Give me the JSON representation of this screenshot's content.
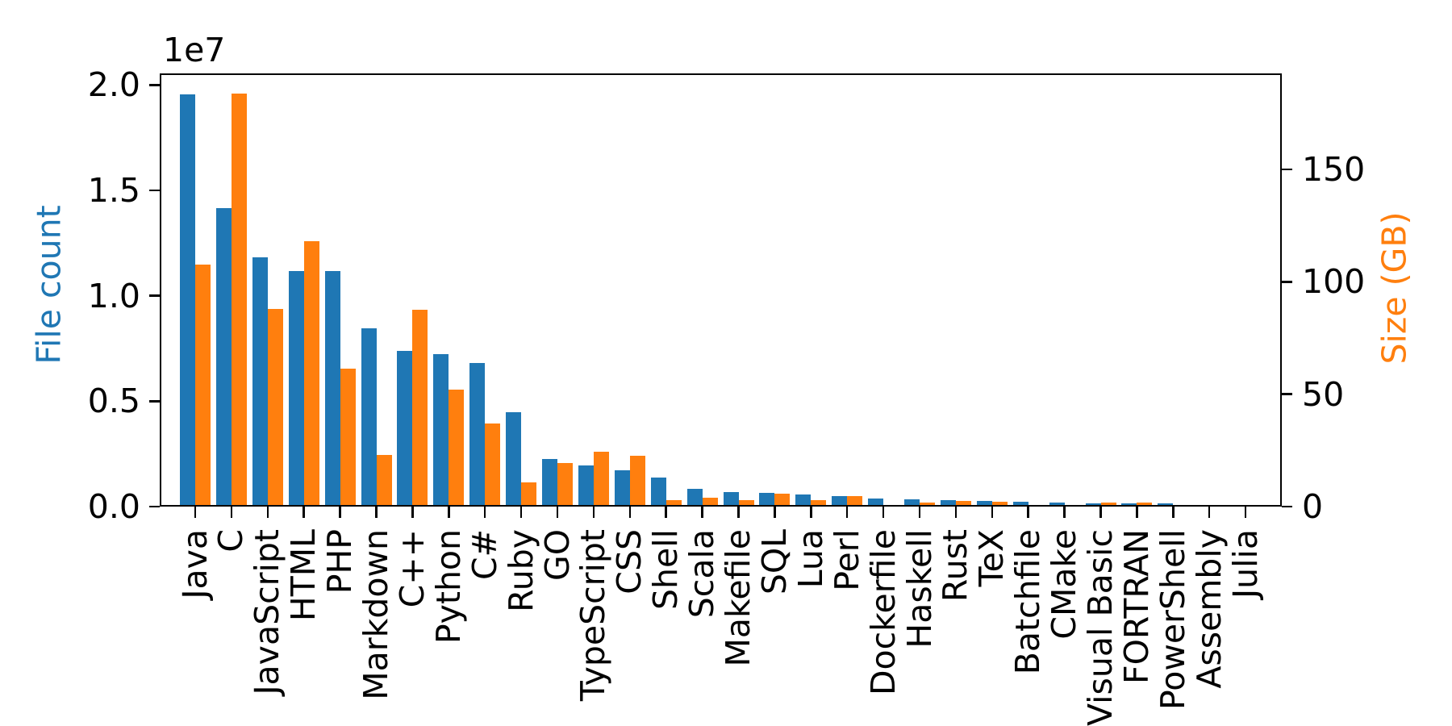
{
  "figure": {
    "background": "#ffffff",
    "offset_label": "1e7"
  },
  "chart_data": {
    "type": "bar",
    "title": "",
    "categories": [
      "Java",
      "C",
      "JavaScript",
      "HTML",
      "PHP",
      "Markdown",
      "C++",
      "Python",
      "C#",
      "Ruby",
      "GO",
      "TypeScript",
      "CSS",
      "Shell",
      "Scala",
      "Makefile",
      "SQL",
      "Lua",
      "Perl",
      "Dockerfile",
      "Haskell",
      "Rust",
      "TeX",
      "Batchfile",
      "CMake",
      "Visual Basic",
      "FORTRAN",
      "PowerShell",
      "Assembly",
      "Julia"
    ],
    "series": [
      {
        "name": "File count",
        "axis": "left",
        "color": "#1f77b4",
        "values": [
          19548190,
          14143113,
          11839883,
          11178557,
          11177610,
          8464626,
          7380520,
          7226626,
          6811652,
          4473331,
          2265436,
          1940406,
          1734406,
          1385648,
          835755,
          679430,
          656671,
          578554,
          497949,
          366505,
          340623,
          322431,
          251015,
          236945,
          175282,
          155652,
          142038,
          136846,
          82905,
          58317
        ]
      },
      {
        "name": "Size (GB)",
        "axis": "right",
        "color": "#ff7f0e",
        "values": [
          107.7,
          183.83,
          87.82,
          118.12,
          61.41,
          23.09,
          87.73,
          52.03,
          36.83,
          10.95,
          19.28,
          24.59,
          22.67,
          3.01,
          3.87,
          2.92,
          5.67,
          2.81,
          4.7,
          0.71,
          1.85,
          2.68,
          2.15,
          0.7,
          0.54,
          1.91,
          1.62,
          0.69,
          0.78,
          0.29
        ]
      }
    ],
    "left_axis": {
      "label": "File count",
      "color": "#1f77b4",
      "tick_values": [
        0,
        5000000,
        10000000,
        15000000,
        20000000
      ],
      "tick_labels": [
        "0.0",
        "0.5",
        "1.0",
        "1.5",
        "2.0"
      ],
      "offset_text": "1e7",
      "range": [
        0,
        20550000
      ]
    },
    "right_axis": {
      "label": "Size (GB)",
      "color": "#ff7f0e",
      "tick_values": [
        0,
        50,
        100,
        150
      ],
      "tick_labels": [
        "0",
        "50",
        "100",
        "150"
      ],
      "range": [
        0,
        192.8
      ]
    },
    "x_axis": {
      "tick_label_rotation": 90
    },
    "grid": false,
    "legend": "none"
  }
}
